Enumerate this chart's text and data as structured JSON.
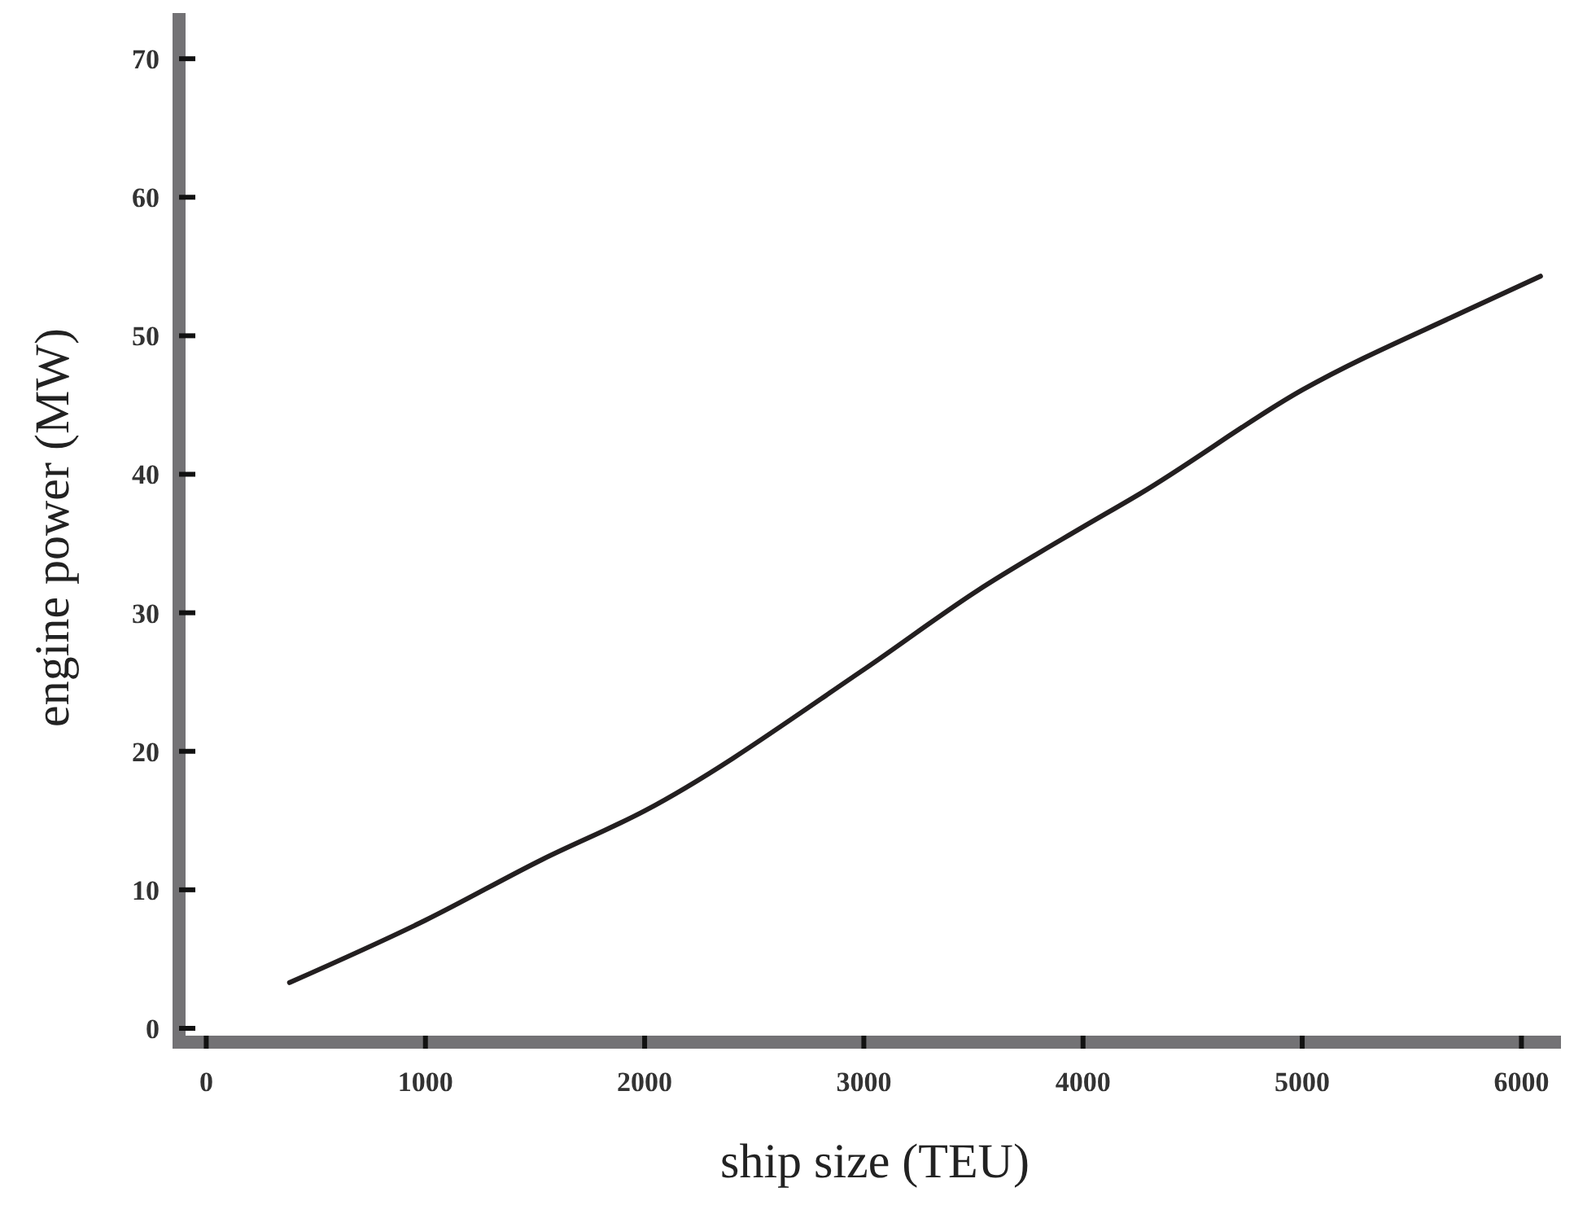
{
  "chart_data": {
    "type": "line",
    "xlabel": "ship size (TEU)",
    "ylabel": "engine power (MW)",
    "x": [
      380,
      1000,
      1534,
      2000,
      3000,
      3518,
      4000,
      4260,
      5002,
      5745,
      6087
    ],
    "series": [
      {
        "color": "#231f20",
        "values": [
          3.3,
          7.8,
          12.2,
          15.7,
          25.9,
          31.6,
          36.2,
          38.6,
          46.1,
          51.8,
          54.3
        ]
      }
    ],
    "xlim": [
      -124,
      6225
    ],
    "xticks": [
      0,
      1000,
      2000,
      3000,
      4000,
      5000,
      6000
    ],
    "ylim": [
      -1,
      73.3
    ],
    "yticks": [
      0,
      10,
      20,
      30,
      40,
      50,
      60,
      70
    ],
    "grid": false,
    "marker": "none",
    "line_style": "solid"
  }
}
